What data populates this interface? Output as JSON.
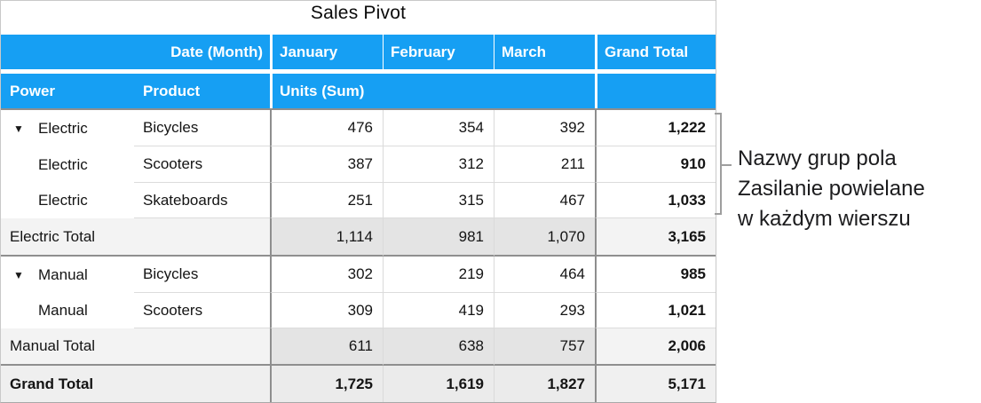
{
  "title": "Sales Pivot",
  "header": {
    "date_field": "Date (Month)",
    "months": [
      "January",
      "February",
      "March"
    ],
    "grand_total": "Grand Total",
    "power_field": "Power",
    "product_field": "Product",
    "values_field": "Units (Sum)"
  },
  "icons": {
    "disclosure": "▼"
  },
  "rows": [
    {
      "power": "Electric",
      "product": "Bicycles",
      "jan": "476",
      "feb": "354",
      "mar": "392",
      "total": "1,222"
    },
    {
      "power": "Electric",
      "product": "Scooters",
      "jan": "387",
      "feb": "312",
      "mar": "211",
      "total": "910"
    },
    {
      "power": "Electric",
      "product": "Skateboards",
      "jan": "251",
      "feb": "315",
      "mar": "467",
      "total": "1,033"
    },
    {
      "power": "Electric Total",
      "product": "",
      "jan": "1,114",
      "feb": "981",
      "mar": "1,070",
      "total": "3,165"
    },
    {
      "power": "Manual",
      "product": "Bicycles",
      "jan": "302",
      "feb": "219",
      "mar": "464",
      "total": "985"
    },
    {
      "power": "Manual",
      "product": "Scooters",
      "jan": "309",
      "feb": "419",
      "mar": "293",
      "total": "1,021"
    },
    {
      "power": "Manual Total",
      "product": "",
      "jan": "611",
      "feb": "638",
      "mar": "757",
      "total": "2,006"
    },
    {
      "power": "Grand Total",
      "product": "",
      "jan": "1,725",
      "feb": "1,619",
      "mar": "1,827",
      "total": "5,171"
    }
  ],
  "annotation": {
    "lines": [
      "Nazwy grup pola",
      "Zasilanie powielane",
      "w każdym wierszu"
    ]
  },
  "colors": {
    "header_blue": "#169FF3",
    "subtotal_label_bg": "#f3f3f3",
    "subtotal_value_bg": "#e4e4e4",
    "grand_row_bg": "#eeeeee",
    "grid_dark": "#8e8e8e",
    "grid_light": "#dcdcdc",
    "bracket_gray": "#9e9e9e"
  }
}
